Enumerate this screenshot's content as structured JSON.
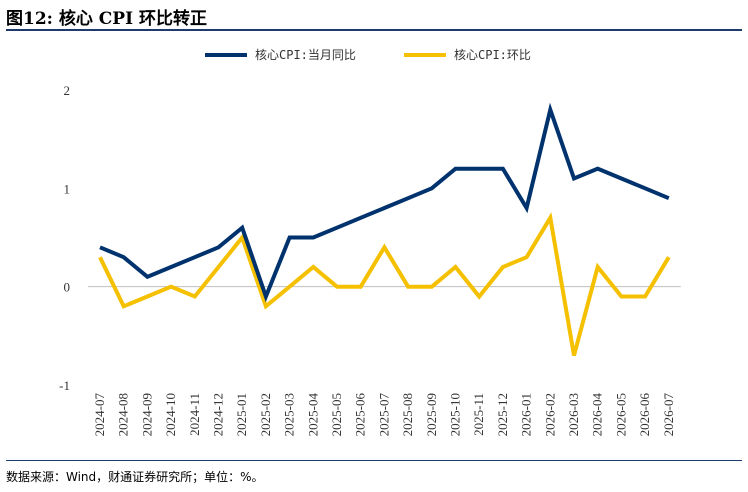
{
  "header": {
    "title": "图12: 核心 CPI 环比转正"
  },
  "footer": {
    "source": "数据来源：Wind，财通证券研究所；单位：%。"
  },
  "colors": {
    "series_yoy": "#00326e",
    "series_mom": "#f5c000",
    "rule": "#1f3b6e",
    "zero_line": "#bfbfbf"
  },
  "chart_data": {
    "type": "line",
    "title": "",
    "xlabel": "",
    "ylabel": "",
    "ylim": [
      -1,
      2
    ],
    "yticks": [
      "2",
      "1",
      "0",
      "-1"
    ],
    "grid": false,
    "legend_position": "top-center",
    "x": [
      "2024-07",
      "2024-08",
      "2024-09",
      "2024-10",
      "2024-11",
      "2024-12",
      "2025-01",
      "2025-02",
      "2025-03",
      "2025-04",
      "2025-05",
      "2025-06",
      "2025-07",
      "2025-08",
      "2025-09",
      "2025-10",
      "2025-11",
      "2025-12",
      "2026-01",
      "2026-02",
      "2026-03",
      "2026-04",
      "2026-05",
      "2026-06",
      "2026-07"
    ],
    "series": [
      {
        "name": "核心CPI:当月同比",
        "values": [
          0.4,
          0.3,
          0.1,
          0.2,
          0.3,
          0.4,
          0.6,
          -0.1,
          0.5,
          0.5,
          0.6,
          0.7,
          0.8,
          0.9,
          1.0,
          1.2,
          1.2,
          1.2,
          0.8,
          1.8,
          1.1,
          1.2,
          1.1,
          1.0,
          0.9
        ]
      },
      {
        "name": "核心CPI:环比",
        "values": [
          0.3,
          -0.2,
          -0.1,
          0.0,
          -0.1,
          0.2,
          0.5,
          -0.2,
          0.0,
          0.2,
          0.0,
          0.0,
          0.4,
          0.0,
          0.0,
          0.2,
          -0.1,
          0.2,
          0.3,
          0.7,
          -0.7,
          0.2,
          -0.1,
          -0.1,
          0.3
        ]
      }
    ]
  }
}
